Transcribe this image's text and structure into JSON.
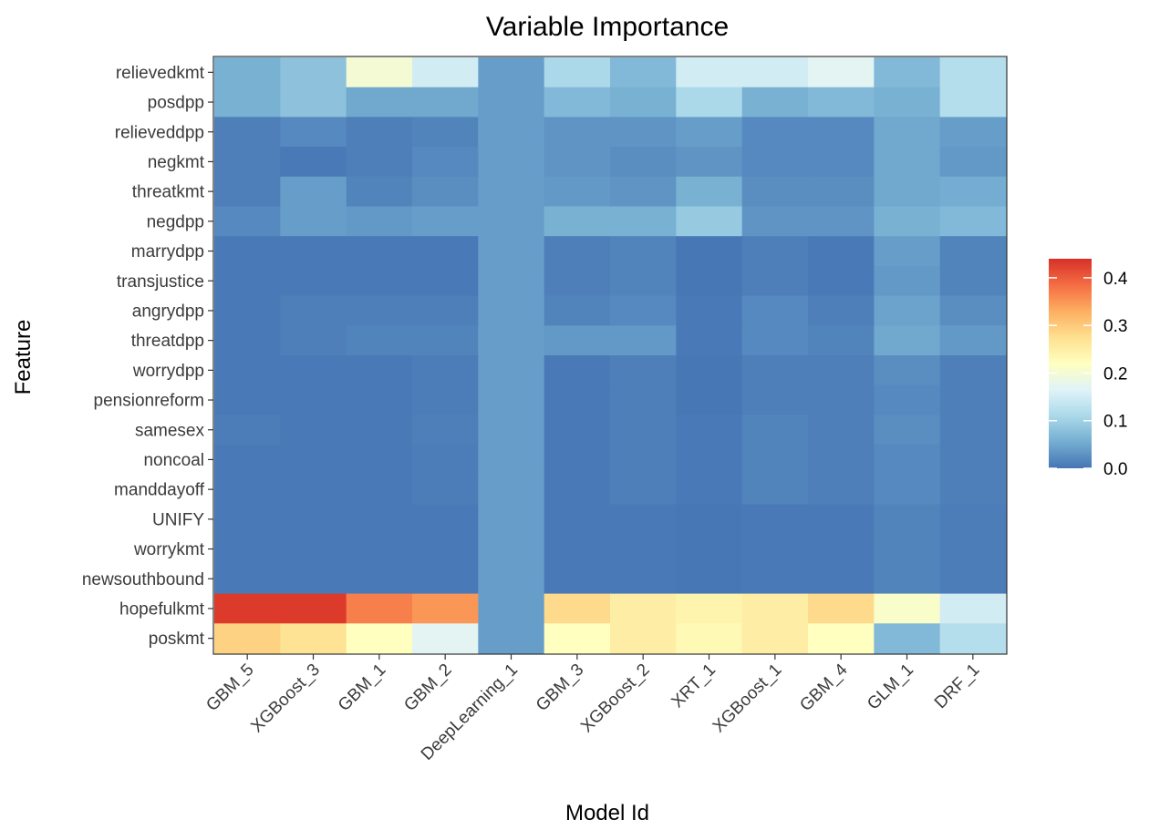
{
  "chart_data": {
    "type": "heatmap",
    "title": "Variable Importance",
    "xlabel": "Model Id",
    "ylabel": "Feature",
    "models": [
      "GBM_5",
      "XGBoost_3",
      "GBM_1",
      "GBM_2",
      "DeepLearning_1",
      "GBM_3",
      "XGBoost_2",
      "XRT_1",
      "XGBoost_1",
      "GBM_4",
      "GLM_1",
      "DRF_1"
    ],
    "features": [
      "relievedkmt",
      "posdpp",
      "relieveddpp",
      "negkmt",
      "threatkmt",
      "negdpp",
      "marrydpp",
      "transjustice",
      "angrydpp",
      "threatdpp",
      "worrydpp",
      "pensionreform",
      "samesex",
      "noncoal",
      "manddayoff",
      "UNIFY",
      "worrykmt",
      "newsouthbound",
      "hopefulkmt",
      "poskmt"
    ],
    "values": [
      [
        0.06,
        0.08,
        0.2,
        0.15,
        0.04,
        0.11,
        0.07,
        0.15,
        0.15,
        0.17,
        0.07,
        0.12
      ],
      [
        0.06,
        0.08,
        0.05,
        0.05,
        0.04,
        0.07,
        0.06,
        0.11,
        0.06,
        0.07,
        0.06,
        0.12
      ],
      [
        0.01,
        0.02,
        0.01,
        0.015,
        0.04,
        0.03,
        0.03,
        0.04,
        0.02,
        0.02,
        0.05,
        0.04
      ],
      [
        0.01,
        0.005,
        0.01,
        0.02,
        0.04,
        0.03,
        0.025,
        0.03,
        0.02,
        0.02,
        0.05,
        0.035
      ],
      [
        0.01,
        0.04,
        0.015,
        0.025,
        0.04,
        0.035,
        0.03,
        0.06,
        0.025,
        0.025,
        0.05,
        0.055
      ],
      [
        0.02,
        0.04,
        0.035,
        0.04,
        0.04,
        0.06,
        0.06,
        0.09,
        0.03,
        0.03,
        0.06,
        0.07
      ],
      [
        0.005,
        0.005,
        0.005,
        0.005,
        0.04,
        0.01,
        0.015,
        0.002,
        0.01,
        0.005,
        0.04,
        0.015
      ],
      [
        0.005,
        0.005,
        0.005,
        0.005,
        0.04,
        0.01,
        0.015,
        0.002,
        0.01,
        0.005,
        0.035,
        0.015
      ],
      [
        0.005,
        0.01,
        0.01,
        0.01,
        0.04,
        0.015,
        0.02,
        0.005,
        0.02,
        0.01,
        0.045,
        0.025
      ],
      [
        0.005,
        0.01,
        0.015,
        0.015,
        0.04,
        0.035,
        0.035,
        0.005,
        0.02,
        0.015,
        0.05,
        0.035
      ],
      [
        0.005,
        0.005,
        0.005,
        0.008,
        0.04,
        0.005,
        0.01,
        0.002,
        0.01,
        0.01,
        0.025,
        0.01
      ],
      [
        0.005,
        0.005,
        0.005,
        0.008,
        0.04,
        0.005,
        0.01,
        0.002,
        0.01,
        0.01,
        0.02,
        0.01
      ],
      [
        0.008,
        0.005,
        0.005,
        0.01,
        0.04,
        0.005,
        0.01,
        0.005,
        0.015,
        0.01,
        0.025,
        0.01
      ],
      [
        0.005,
        0.005,
        0.005,
        0.008,
        0.04,
        0.005,
        0.01,
        0.005,
        0.015,
        0.01,
        0.02,
        0.01
      ],
      [
        0.005,
        0.005,
        0.005,
        0.008,
        0.04,
        0.005,
        0.01,
        0.005,
        0.015,
        0.01,
        0.02,
        0.01
      ],
      [
        0.005,
        0.005,
        0.005,
        0.005,
        0.04,
        0.005,
        0.005,
        0.002,
        0.005,
        0.005,
        0.015,
        0.008
      ],
      [
        0.005,
        0.005,
        0.005,
        0.005,
        0.04,
        0.005,
        0.005,
        0.002,
        0.005,
        0.005,
        0.015,
        0.008
      ],
      [
        0.005,
        0.005,
        0.005,
        0.005,
        0.04,
        0.005,
        0.005,
        0.002,
        0.005,
        0.005,
        0.015,
        0.008
      ],
      [
        0.43,
        0.43,
        0.37,
        0.35,
        0.04,
        0.28,
        0.25,
        0.24,
        0.25,
        0.28,
        0.21,
        0.15
      ],
      [
        0.29,
        0.27,
        0.22,
        0.17,
        0.04,
        0.22,
        0.25,
        0.23,
        0.25,
        0.22,
        0.07,
        0.12
      ]
    ],
    "colorbar": {
      "min": 0.0,
      "max": 0.44,
      "ticks": [
        0.0,
        0.1,
        0.2,
        0.3,
        0.4
      ],
      "tick_labels": [
        "0.0",
        "0.1",
        "0.2",
        "0.3",
        "0.4"
      ]
    },
    "colors": [
      "#4575b4",
      "#74add1",
      "#abd9e9",
      "#e0f3f8",
      "#ffffbf",
      "#fee090",
      "#fdae61",
      "#f46d43",
      "#d73027"
    ]
  }
}
